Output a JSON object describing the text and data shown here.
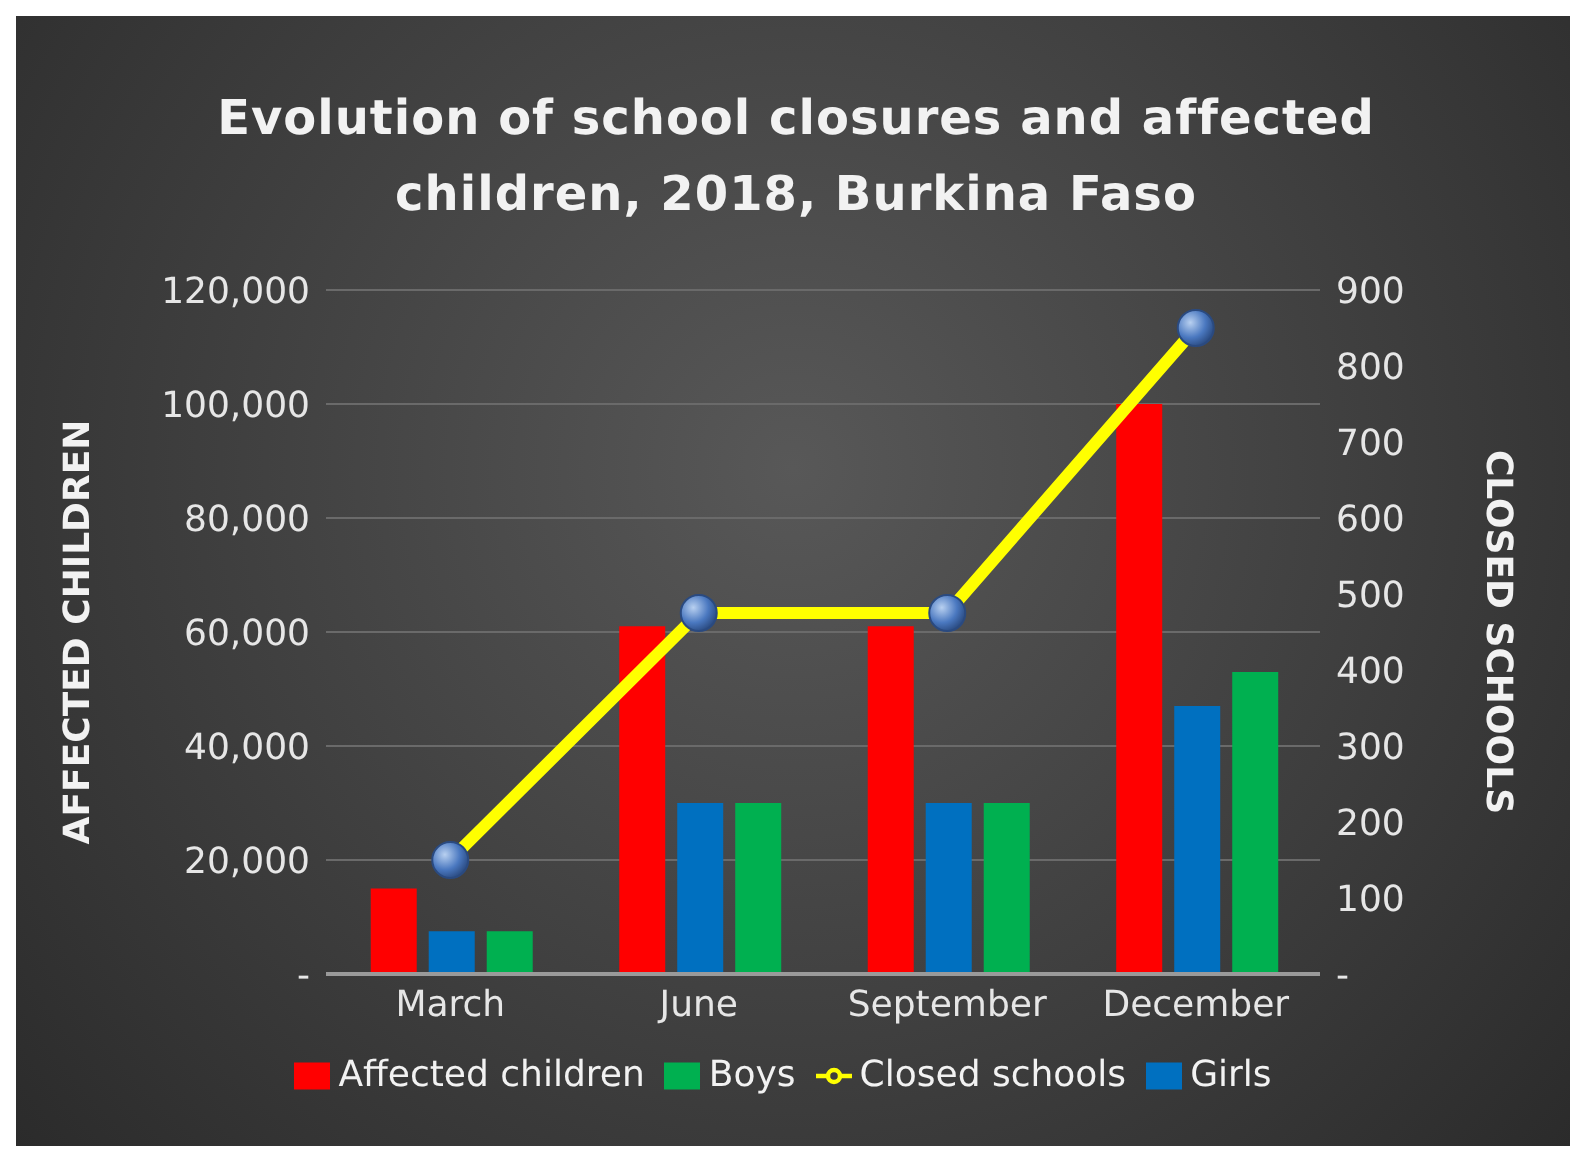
{
  "chart_data": {
    "type": "bar",
    "title": "Evolution of school closures and affected children, 2018, Burkina Faso",
    "categories": [
      "March",
      "June",
      "September",
      "December"
    ],
    "series": [
      {
        "name": "Affected children",
        "color": "#ff0000",
        "values": [
          15000,
          61000,
          61000,
          100000
        ]
      },
      {
        "name": "Girls",
        "color": "#0070c0",
        "values": [
          7500,
          30000,
          30000,
          47000
        ]
      },
      {
        "name": "Boys",
        "color": "#00b050",
        "values": [
          7500,
          30000,
          30000,
          53000
        ]
      },
      {
        "name": "Closed schools",
        "type": "line",
        "axis": "y2",
        "color": "#ffff00",
        "values": [
          150,
          475,
          475,
          850
        ]
      }
    ],
    "ylabel": "AFFECTED CHILDREN",
    "y2label": "CLOSED SCHOOLS",
    "ylim": [
      0,
      120000
    ],
    "yticks": [
      {
        "value": 0,
        "label": "-"
      },
      {
        "value": 20000,
        "label": "20,000"
      },
      {
        "value": 40000,
        "label": "40,000"
      },
      {
        "value": 60000,
        "label": "60,000"
      },
      {
        "value": 80000,
        "label": "80,000"
      },
      {
        "value": 100000,
        "label": "100,000"
      },
      {
        "value": 120000,
        "label": "120,000"
      }
    ],
    "y2lim": [
      0,
      900
    ],
    "y2ticks": [
      {
        "value": 0,
        "label": "-"
      },
      100,
      200,
      300,
      400,
      500,
      600,
      700,
      800,
      900
    ],
    "grid": "y",
    "legend": "bottom",
    "marker": "circle"
  }
}
